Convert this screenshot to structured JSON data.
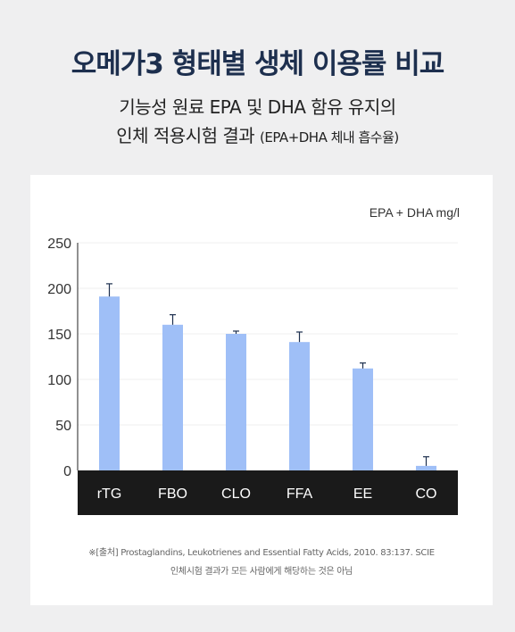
{
  "page": {
    "title": "오메가3 형태별 생체 이용률 비교",
    "subtitle_line1": "기능성 원료 EPA 및 DHA 함유 유지의",
    "subtitle_line2_main": "인체 적용시험 결과",
    "subtitle_line2_small": "(EPA+DHA 체내 흡수율)"
  },
  "footnote": {
    "line1": "※[출처] Prostaglandins, Leukotrienes and Essential Fatty Acids, 2010. 83:137. SCIE",
    "line2": "인체시험 결과가 모든 사람에게 해당하는 것은 아님"
  },
  "chart_data": {
    "type": "bar",
    "categories": [
      "rTG",
      "FBO",
      "CLO",
      "FFA",
      "EE",
      "CO"
    ],
    "values": [
      191,
      160,
      150,
      141,
      112,
      5
    ],
    "error_high": [
      205,
      171,
      153,
      152,
      118,
      15
    ],
    "ylabel": "EPA + DHA mg/l",
    "ylim": [
      0,
      250
    ],
    "yticks": [
      0,
      50,
      100,
      150,
      200,
      250
    ],
    "grid": true,
    "bar_color": "#9fbff7",
    "axis_band_color": "#1a1a1a"
  }
}
